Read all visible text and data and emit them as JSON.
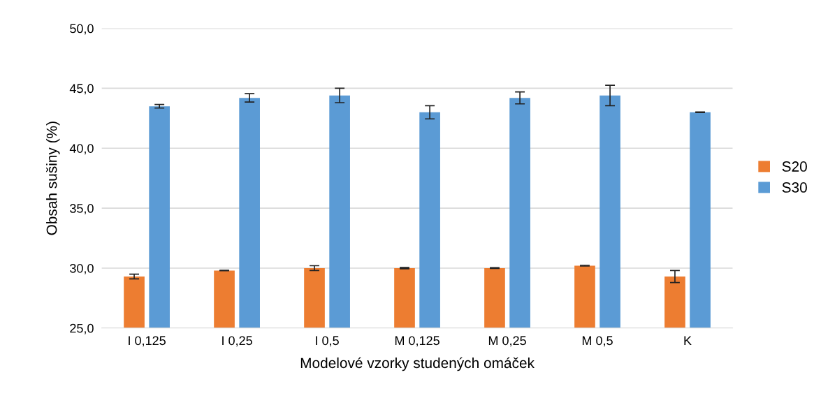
{
  "chart_data": {
    "type": "bar",
    "xlabel": "Modelové vzorky studených omáček",
    "ylabel": "Obsah sušiny (%)",
    "categories": [
      "I 0,125",
      "I 0,25",
      "I 0,5",
      "M 0,125",
      "M 0,25",
      "M 0,5",
      "K"
    ],
    "series": [
      {
        "name": "S20",
        "color": "#ed7d31",
        "values": [
          29.3,
          29.8,
          30.0,
          30.0,
          30.0,
          30.2,
          29.3
        ],
        "errors": [
          0.2,
          0.02,
          0.2,
          0.05,
          0.03,
          0.03,
          0.5
        ]
      },
      {
        "name": "S30",
        "color": "#5b9bd5",
        "values": [
          43.5,
          44.2,
          44.4,
          43.0,
          44.2,
          44.4,
          43.0
        ],
        "errors": [
          0.15,
          0.35,
          0.6,
          0.55,
          0.5,
          0.85,
          0.03
        ]
      }
    ],
    "ylim": [
      25,
      50
    ],
    "yticks": [
      {
        "value": 25,
        "label": "25,0"
      },
      {
        "value": 30,
        "label": "30,0"
      },
      {
        "value": 35,
        "label": "35,0"
      },
      {
        "value": 40,
        "label": "40,0"
      },
      {
        "value": 45,
        "label": "45,0"
      },
      {
        "value": 50,
        "label": "50,0"
      }
    ],
    "grid": "y",
    "legend": "right"
  }
}
